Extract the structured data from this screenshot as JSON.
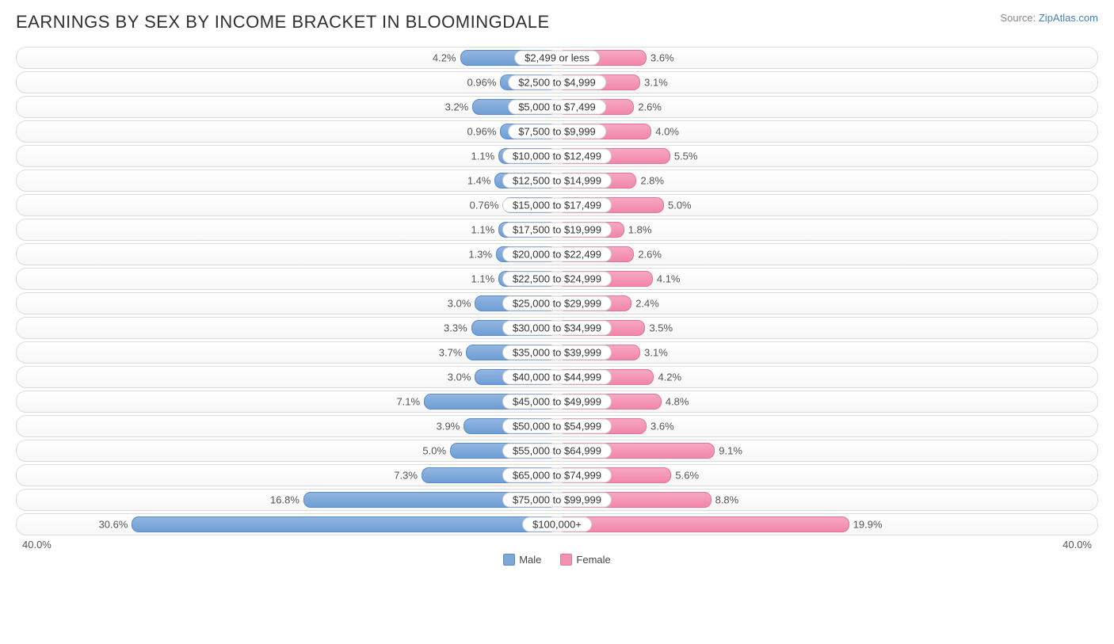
{
  "title": "EARNINGS BY SEX BY INCOME BRACKET IN BLOOMINGDALE",
  "source_prefix": "Source: ",
  "source_link": "ZipAtlas.com",
  "axis_max": 40.0,
  "axis_label_left": "40.0%",
  "axis_label_right": "40.0%",
  "legend": {
    "male": "Male",
    "female": "Female"
  },
  "colors": {
    "male_fill": "#7ba7d9",
    "female_fill": "#f491b2",
    "row_border": "#dcdcdc",
    "text": "#303030"
  },
  "rows": [
    {
      "label": "$2,499 or less",
      "male": 4.2,
      "male_txt": "4.2%",
      "female": 3.6,
      "female_txt": "3.6%"
    },
    {
      "label": "$2,500 to $4,999",
      "male": 0.96,
      "male_txt": "0.96%",
      "female": 3.1,
      "female_txt": "3.1%"
    },
    {
      "label": "$5,000 to $7,499",
      "male": 3.2,
      "male_txt": "3.2%",
      "female": 2.6,
      "female_txt": "2.6%"
    },
    {
      "label": "$7,500 to $9,999",
      "male": 0.96,
      "male_txt": "0.96%",
      "female": 4.0,
      "female_txt": "4.0%"
    },
    {
      "label": "$10,000 to $12,499",
      "male": 1.1,
      "male_txt": "1.1%",
      "female": 5.5,
      "female_txt": "5.5%"
    },
    {
      "label": "$12,500 to $14,999",
      "male": 1.4,
      "male_txt": "1.4%",
      "female": 2.8,
      "female_txt": "2.8%"
    },
    {
      "label": "$15,000 to $17,499",
      "male": 0.76,
      "male_txt": "0.76%",
      "female": 5.0,
      "female_txt": "5.0%"
    },
    {
      "label": "$17,500 to $19,999",
      "male": 1.1,
      "male_txt": "1.1%",
      "female": 1.8,
      "female_txt": "1.8%"
    },
    {
      "label": "$20,000 to $22,499",
      "male": 1.3,
      "male_txt": "1.3%",
      "female": 2.6,
      "female_txt": "2.6%"
    },
    {
      "label": "$22,500 to $24,999",
      "male": 1.1,
      "male_txt": "1.1%",
      "female": 4.1,
      "female_txt": "4.1%"
    },
    {
      "label": "$25,000 to $29,999",
      "male": 3.0,
      "male_txt": "3.0%",
      "female": 2.4,
      "female_txt": "2.4%"
    },
    {
      "label": "$30,000 to $34,999",
      "male": 3.3,
      "male_txt": "3.3%",
      "female": 3.5,
      "female_txt": "3.5%"
    },
    {
      "label": "$35,000 to $39,999",
      "male": 3.7,
      "male_txt": "3.7%",
      "female": 3.1,
      "female_txt": "3.1%"
    },
    {
      "label": "$40,000 to $44,999",
      "male": 3.0,
      "male_txt": "3.0%",
      "female": 4.2,
      "female_txt": "4.2%"
    },
    {
      "label": "$45,000 to $49,999",
      "male": 7.1,
      "male_txt": "7.1%",
      "female": 4.8,
      "female_txt": "4.8%"
    },
    {
      "label": "$50,000 to $54,999",
      "male": 3.9,
      "male_txt": "3.9%",
      "female": 3.6,
      "female_txt": "3.6%"
    },
    {
      "label": "$55,000 to $64,999",
      "male": 5.0,
      "male_txt": "5.0%",
      "female": 9.1,
      "female_txt": "9.1%"
    },
    {
      "label": "$65,000 to $74,999",
      "male": 7.3,
      "male_txt": "7.3%",
      "female": 5.6,
      "female_txt": "5.6%"
    },
    {
      "label": "$75,000 to $99,999",
      "male": 16.8,
      "male_txt": "16.8%",
      "female": 8.8,
      "female_txt": "8.8%"
    },
    {
      "label": "$100,000+",
      "male": 30.6,
      "male_txt": "30.6%",
      "female": 19.9,
      "female_txt": "19.9%"
    }
  ]
}
